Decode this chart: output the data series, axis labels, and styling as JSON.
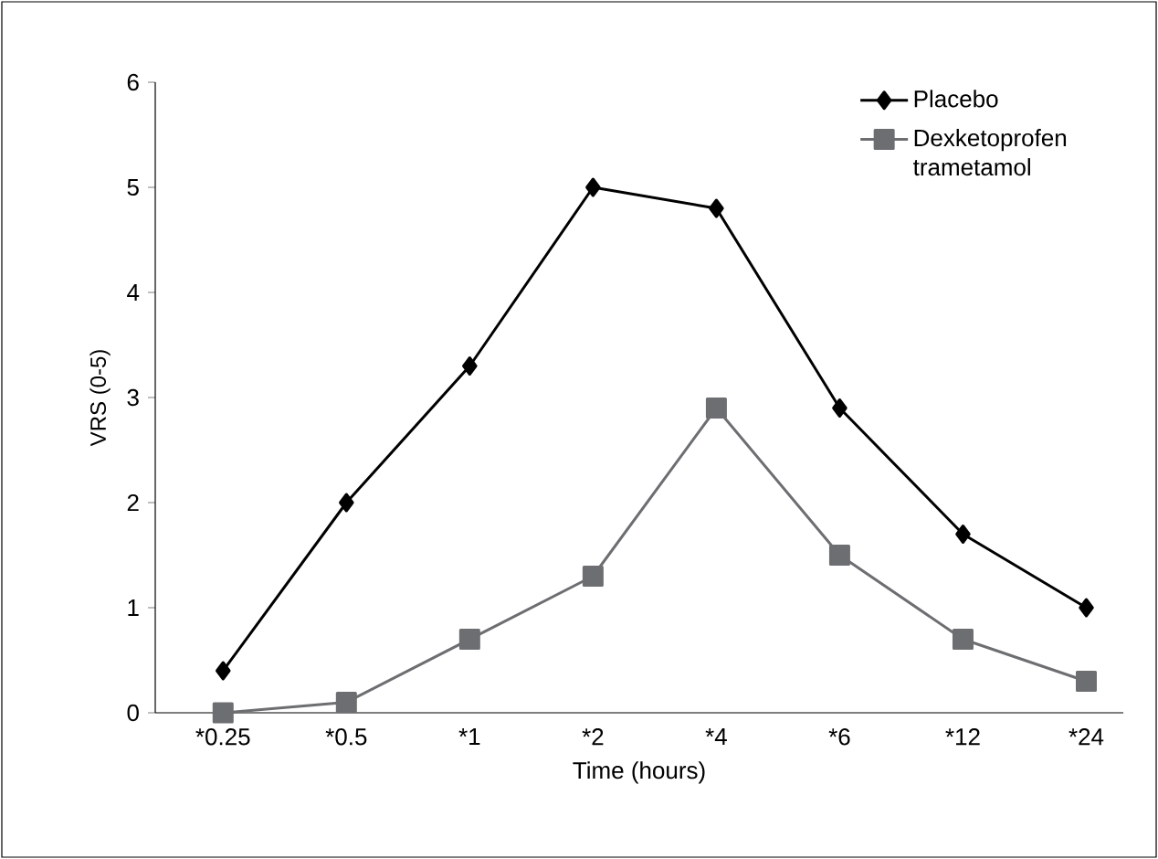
{
  "chart_data": {
    "type": "line",
    "xlabel": "Time (hours)",
    "ylabel": "VRS (0-5)",
    "categories": [
      "*0.25",
      "*0.5",
      "*1",
      "*2",
      "*4",
      "*6",
      "*12",
      "*24"
    ],
    "series": [
      {
        "name": "Placebo",
        "color": "#000000",
        "marker": "diamond",
        "values": [
          0.4,
          2,
          3.3,
          5,
          4.8,
          2.9,
          1.7,
          1.0
        ]
      },
      {
        "name": "Dexketoprofen trametamol",
        "color": "#6d6e71",
        "marker": "square",
        "values": [
          0,
          0.1,
          0.7,
          1.3,
          2.9,
          1.5,
          0.7,
          0.3
        ]
      }
    ],
    "ylim": [
      0,
      6
    ],
    "yticks": [
      0,
      1,
      2,
      3,
      4,
      5,
      6
    ],
    "grid": false,
    "legend": "top right",
    "line_style": "solid"
  }
}
